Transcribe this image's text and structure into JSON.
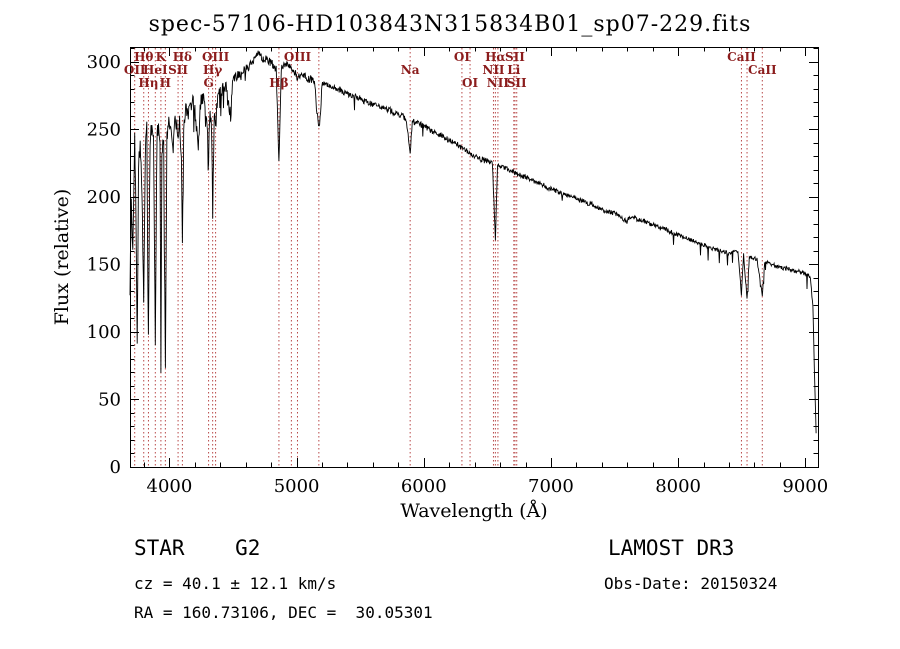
{
  "title": "spec-57106-HD103843N315834B01_sp07-229.fits",
  "info": {
    "class_label": "STAR    G2",
    "survey": "LAMOST DR3",
    "cz": "cz = 40.1 ± 12.1 km/s",
    "obs_date": "Obs-Date: 20150324",
    "coords": "RA = 160.73106, DEC =  30.05301"
  },
  "chart_data": {
    "type": "line",
    "title": "spec-57106-HD103843N315834B01_sp07-229.fits",
    "xlabel": "Wavelength (Å)",
    "ylabel": "Flux (relative)",
    "xlim": [
      3690,
      9100
    ],
    "ylim": [
      0,
      311
    ],
    "xticks": [
      4000,
      5000,
      6000,
      7000,
      8000,
      9000
    ],
    "yticks": [
      0,
      50,
      100,
      150,
      200,
      250,
      300
    ],
    "x_minor_step": 200,
    "y_minor_step": 10,
    "grid": false,
    "legend": false,
    "spectrum_color": "#000000",
    "line_marker_color": "#b84848",
    "label_color": "#8b1c1c",
    "spectral_lines": [
      {
        "wavelength": 3727,
        "label": "OII",
        "row": 2
      },
      {
        "wavelength": 3798,
        "label": "Hθ",
        "row": 1
      },
      {
        "wavelength": 3835,
        "label": "Hη",
        "row": 3
      },
      {
        "wavelength": 3889,
        "label": "HeI",
        "row": 2
      },
      {
        "wavelength": 3933,
        "label": "K",
        "row": 1
      },
      {
        "wavelength": 3968,
        "label": "H",
        "row": 3
      },
      {
        "wavelength": 4068,
        "label": "SII",
        "row": 2
      },
      {
        "wavelength": 4102,
        "label": "Hδ",
        "row": 1
      },
      {
        "wavelength": 4308,
        "label": "G",
        "row": 3
      },
      {
        "wavelength": 4340,
        "label": "Hγ",
        "row": 2
      },
      {
        "wavelength": 4363,
        "label": "OIII",
        "row": 1
      },
      {
        "wavelength": 4861,
        "label": "Hβ",
        "row": 3
      },
      {
        "wavelength": 4959,
        "label": "",
        "row": 1
      },
      {
        "wavelength": 5007,
        "label": "OIII",
        "row": 1
      },
      {
        "wavelength": 5175,
        "label": "",
        "row": 1
      },
      {
        "wavelength": 5893,
        "label": "Na",
        "row": 2
      },
      {
        "wavelength": 6300,
        "label": "OI",
        "row": 1
      },
      {
        "wavelength": 6364,
        "label": "OI",
        "row": 3
      },
      {
        "wavelength": 6548,
        "label": "NII",
        "row": 2
      },
      {
        "wavelength": 6563,
        "label": "Hα",
        "row": 1
      },
      {
        "wavelength": 6583,
        "label": "NII",
        "row": 3
      },
      {
        "wavelength": 6708,
        "label": "Li",
        "row": 2
      },
      {
        "wavelength": 6717,
        "label": "SII",
        "row": 1
      },
      {
        "wavelength": 6731,
        "label": "SII",
        "row": 3
      },
      {
        "wavelength": 8498,
        "label": "CaII",
        "row": 1
      },
      {
        "wavelength": 8542,
        "label": "",
        "row": 1
      },
      {
        "wavelength": 8662,
        "label": "CaII",
        "row": 2
      }
    ],
    "spectrum": [
      [
        3690,
        130
      ],
      [
        3700,
        195
      ],
      [
        3712,
        160
      ],
      [
        3727,
        246
      ],
      [
        3737,
        185
      ],
      [
        3747,
        92
      ],
      [
        3757,
        222
      ],
      [
        3770,
        240
      ],
      [
        3784,
        205
      ],
      [
        3798,
        118
      ],
      [
        3810,
        235
      ],
      [
        3822,
        250
      ],
      [
        3835,
        102
      ],
      [
        3848,
        243
      ],
      [
        3862,
        254
      ],
      [
        3875,
        248
      ],
      [
        3889,
        96
      ],
      [
        3903,
        252
      ],
      [
        3918,
        248
      ],
      [
        3926,
        244
      ],
      [
        3933,
        66
      ],
      [
        3941,
        232
      ],
      [
        3955,
        243
      ],
      [
        3968,
        76
      ],
      [
        3980,
        246
      ],
      [
        3995,
        258
      ],
      [
        4010,
        252
      ],
      [
        4026,
        232
      ],
      [
        4045,
        262
      ],
      [
        4058,
        252
      ],
      [
        4068,
        243
      ],
      [
        4080,
        258
      ],
      [
        4094,
        228
      ],
      [
        4102,
        162
      ],
      [
        4112,
        252
      ],
      [
        4128,
        266
      ],
      [
        4145,
        260
      ],
      [
        4160,
        268
      ],
      [
        4180,
        271
      ],
      [
        4200,
        266
      ],
      [
        4227,
        232
      ],
      [
        4245,
        270
      ],
      [
        4262,
        274
      ],
      [
        4280,
        268
      ],
      [
        4300,
        252
      ],
      [
        4308,
        238
      ],
      [
        4320,
        266
      ],
      [
        4332,
        248
      ],
      [
        4340,
        186
      ],
      [
        4352,
        262
      ],
      [
        4363,
        252
      ],
      [
        4380,
        276
      ],
      [
        4400,
        279
      ],
      [
        4425,
        281
      ],
      [
        4450,
        283
      ],
      [
        4481,
        258
      ],
      [
        4500,
        286
      ],
      [
        4525,
        289
      ],
      [
        4550,
        291
      ],
      [
        4575,
        293
      ],
      [
        4600,
        295
      ],
      [
        4625,
        297
      ],
      [
        4650,
        299
      ],
      [
        4668,
        303
      ],
      [
        4690,
        305
      ],
      [
        4708,
        307
      ],
      [
        4725,
        303
      ],
      [
        4750,
        302
      ],
      [
        4775,
        301
      ],
      [
        4800,
        299
      ],
      [
        4820,
        297
      ],
      [
        4840,
        294
      ],
      [
        4861,
        224
      ],
      [
        4880,
        295
      ],
      [
        4900,
        297
      ],
      [
        4920,
        299
      ],
      [
        4940,
        297
      ],
      [
        4959,
        294
      ],
      [
        4980,
        293
      ],
      [
        5007,
        289
      ],
      [
        5030,
        291
      ],
      [
        5055,
        289
      ],
      [
        5080,
        288
      ],
      [
        5110,
        287
      ],
      [
        5140,
        285
      ],
      [
        5172,
        251
      ],
      [
        5185,
        257
      ],
      [
        5200,
        284
      ],
      [
        5230,
        283
      ],
      [
        5260,
        282
      ],
      [
        5290,
        281
      ],
      [
        5320,
        280
      ],
      [
        5350,
        279
      ],
      [
        5380,
        277
      ],
      [
        5410,
        276
      ],
      [
        5440,
        275
      ],
      [
        5470,
        274
      ],
      [
        5500,
        273
      ],
      [
        5530,
        271
      ],
      [
        5560,
        270
      ],
      [
        5590,
        269
      ],
      [
        5620,
        268
      ],
      [
        5650,
        267
      ],
      [
        5680,
        266
      ],
      [
        5710,
        265
      ],
      [
        5740,
        264
      ],
      [
        5770,
        262
      ],
      [
        5800,
        261
      ],
      [
        5830,
        260
      ],
      [
        5860,
        258
      ],
      [
        5893,
        232
      ],
      [
        5910,
        256
      ],
      [
        5940,
        255
      ],
      [
        5970,
        254
      ],
      [
        6000,
        252
      ],
      [
        6030,
        251
      ],
      [
        6060,
        249
      ],
      [
        6090,
        248
      ],
      [
        6120,
        246
      ],
      [
        6150,
        245
      ],
      [
        6180,
        243
      ],
      [
        6210,
        242
      ],
      [
        6240,
        240
      ],
      [
        6270,
        239
      ],
      [
        6300,
        236
      ],
      [
        6330,
        235
      ],
      [
        6360,
        233
      ],
      [
        6390,
        231
      ],
      [
        6420,
        230
      ],
      [
        6450,
        228
      ],
      [
        6480,
        227
      ],
      [
        6510,
        226
      ],
      [
        6540,
        225
      ],
      [
        6563,
        168
      ],
      [
        6580,
        223
      ],
      [
        6610,
        222
      ],
      [
        6640,
        221
      ],
      [
        6670,
        220
      ],
      [
        6700,
        219
      ],
      [
        6730,
        217
      ],
      [
        6760,
        216
      ],
      [
        6790,
        215
      ],
      [
        6820,
        214
      ],
      [
        6850,
        212
      ],
      [
        6880,
        211
      ],
      [
        6910,
        210
      ],
      [
        6940,
        209
      ],
      [
        6970,
        207
      ],
      [
        7000,
        206
      ],
      [
        7050,
        204
      ],
      [
        7100,
        202
      ],
      [
        7150,
        200
      ],
      [
        7200,
        199
      ],
      [
        7250,
        197
      ],
      [
        7300,
        195
      ],
      [
        7350,
        193
      ],
      [
        7400,
        191
      ],
      [
        7450,
        189
      ],
      [
        7500,
        188
      ],
      [
        7550,
        186
      ],
      [
        7594,
        181
      ],
      [
        7620,
        185
      ],
      [
        7660,
        184
      ],
      [
        7700,
        183
      ],
      [
        7740,
        182
      ],
      [
        7780,
        180
      ],
      [
        7820,
        179
      ],
      [
        7860,
        177
      ],
      [
        7900,
        176
      ],
      [
        7940,
        174
      ],
      [
        7980,
        173
      ],
      [
        8020,
        171
      ],
      [
        8060,
        170
      ],
      [
        8100,
        168
      ],
      [
        8140,
        167
      ],
      [
        8180,
        165
      ],
      [
        8220,
        164
      ],
      [
        8260,
        162
      ],
      [
        8300,
        161
      ],
      [
        8340,
        160
      ],
      [
        8380,
        159
      ],
      [
        8420,
        158
      ],
      [
        8450,
        160
      ],
      [
        8470,
        159
      ],
      [
        8498,
        128
      ],
      [
        8515,
        157
      ],
      [
        8542,
        124
      ],
      [
        8560,
        156
      ],
      [
        8590,
        155
      ],
      [
        8620,
        154
      ],
      [
        8662,
        127
      ],
      [
        8680,
        152
      ],
      [
        8710,
        151
      ],
      [
        8740,
        150
      ],
      [
        8770,
        149
      ],
      [
        8800,
        148
      ],
      [
        8830,
        147
      ],
      [
        8860,
        147
      ],
      [
        8890,
        146
      ],
      [
        8920,
        145
      ],
      [
        8950,
        145
      ],
      [
        8980,
        144
      ],
      [
        9010,
        143
      ],
      [
        9040,
        141
      ],
      [
        9060,
        118
      ],
      [
        9075,
        60
      ],
      [
        9085,
        25
      ]
    ]
  }
}
